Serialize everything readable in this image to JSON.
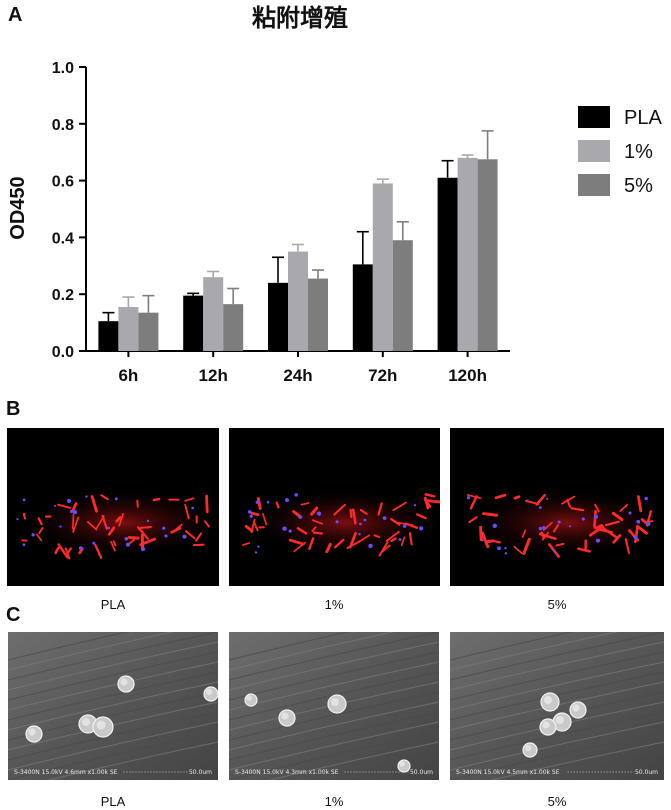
{
  "panel_labels": {
    "a": "A",
    "b": "B",
    "c": "C"
  },
  "chart_data": {
    "type": "bar",
    "title": "粘附增殖",
    "ylabel": "OD450",
    "xlabel": "",
    "ylim": [
      0,
      1.0
    ],
    "yticks": [
      "0.0",
      "0.2",
      "0.4",
      "0.6",
      "0.8",
      "1.0"
    ],
    "categories": [
      "6h",
      "12h",
      "24h",
      "72h",
      "120h"
    ],
    "legend_position": "right",
    "series": [
      {
        "name": "PLA",
        "color": "#000000",
        "values": [
          0.105,
          0.195,
          0.24,
          0.305,
          0.61
        ],
        "errors": [
          0.03,
          0.008,
          0.09,
          0.115,
          0.06
        ]
      },
      {
        "name": "1%",
        "color": "#a9a9ad",
        "values": [
          0.155,
          0.26,
          0.35,
          0.59,
          0.68
        ],
        "errors": [
          0.035,
          0.02,
          0.025,
          0.015,
          0.01
        ]
      },
      {
        "name": "5%",
        "color": "#7d7d7d",
        "values": [
          0.135,
          0.165,
          0.255,
          0.39,
          0.675
        ],
        "errors": [
          0.06,
          0.055,
          0.03,
          0.065,
          0.1
        ]
      }
    ]
  },
  "fluorescence_captions": [
    "PLA",
    "1%",
    "5%"
  ],
  "sem_captions": [
    "PLA",
    "1%",
    "5%"
  ],
  "sem_info_bars": [
    {
      "info": "S-3400N 15.0kV 4.6mm x1.00k SE",
      "scale": "50.0um"
    },
    {
      "info": "S-3400N 15.0kV 4.3mm x1.00k SE",
      "scale": "50.0um"
    },
    {
      "info": "S-3400N 15.0kV 4.5mm x1.00k SE",
      "scale": "50.0um"
    }
  ]
}
